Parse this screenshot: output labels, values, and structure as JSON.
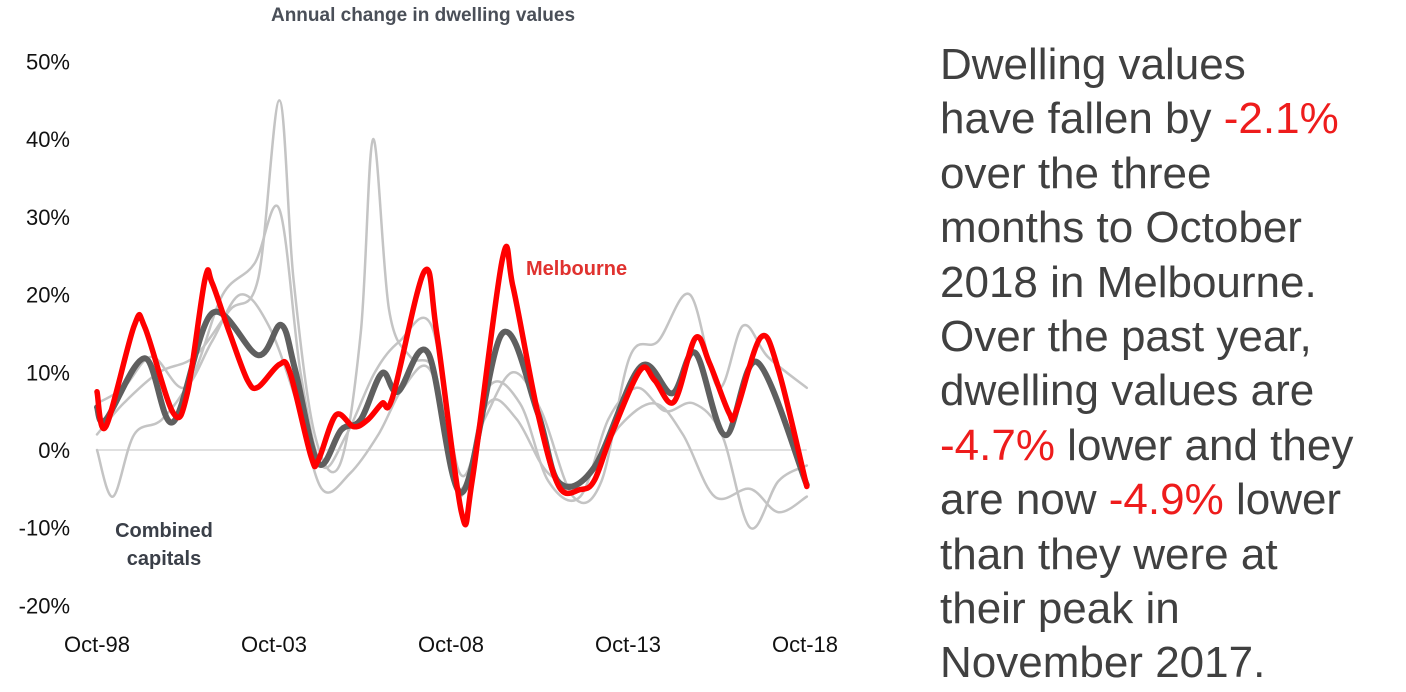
{
  "chart_data": {
    "type": "line",
    "title": "Annual change in dwelling values",
    "xlabel": "",
    "ylabel": "",
    "x_ticks": [
      "Oct-98",
      "Oct-03",
      "Oct-08",
      "Oct-13",
      "Oct-18"
    ],
    "x_tick_values": [
      1998.75,
      2003.75,
      2008.75,
      2013.75,
      2018.75
    ],
    "y_ticks": [
      "50%",
      "40%",
      "30%",
      "20%",
      "10%",
      "0%",
      "-10%",
      "-20%"
    ],
    "y_tick_values": [
      50,
      40,
      30,
      20,
      10,
      0,
      -10,
      -20
    ],
    "ylim": [
      -20,
      50
    ],
    "xlim": [
      1998.75,
      2018.8
    ],
    "grid": false,
    "zero_line": true,
    "colors": {
      "melbourne": "#ff0000",
      "combined": "#5f5f5f",
      "other": "#c4c4c4"
    },
    "series": [
      {
        "name": "Melbourne",
        "label_lines": [
          "Melbourne"
        ],
        "color": "#ff0000",
        "x": [
          1998.75,
          1999.0,
          1999.8,
          2000.1,
          2000.9,
          2001.3,
          2001.8,
          2002.0,
          2002.5,
          2003.0,
          2003.3,
          2003.9,
          2004.2,
          2004.8,
          2005.0,
          2005.5,
          2006.0,
          2006.4,
          2006.8,
          2007.1,
          2008.0,
          2008.35,
          2009.05,
          2009.35,
          2010.2,
          2010.5,
          2011.2,
          2011.8,
          2012.4,
          2012.8,
          2013.3,
          2014.1,
          2014.5,
          2015.05,
          2015.65,
          2016.05,
          2016.6,
          2016.8,
          2017.5,
          2018.0,
          2018.8
        ],
        "y": [
          7.5,
          3.0,
          16.0,
          15.8,
          4.8,
          7.3,
          22.0,
          21.5,
          15.0,
          9.0,
          8.1,
          11.0,
          10.0,
          -0.9,
          -1.3,
          4.5,
          3.0,
          3.9,
          6.0,
          6.8,
          23.0,
          15.0,
          -8.1,
          -3.9,
          24.5,
          21.0,
          4.8,
          -4.7,
          -5.1,
          -3.9,
          2.2,
          10.3,
          9.0,
          6.2,
          14.4,
          11.2,
          4.8,
          4.9,
          14.5,
          10.3,
          -4.7
        ]
      },
      {
        "name": "Combined capitals",
        "label_lines": [
          "Combined",
          "capitals"
        ],
        "color": "#5f5f5f",
        "x": [
          1998.75,
          1999.0,
          2000.1,
          2000.9,
          2002.0,
          2003.3,
          2003.95,
          2004.35,
          2005.0,
          2005.65,
          2006.2,
          2006.8,
          2007.25,
          2008.1,
          2009.05,
          2010.2,
          2011.2,
          2011.8,
          2012.8,
          2014.1,
          2015.0,
          2015.65,
          2016.5,
          2017.4,
          2018.8
        ],
        "y": [
          5.5,
          3.9,
          11.8,
          3.6,
          17.6,
          12.2,
          16.1,
          10.3,
          -1.7,
          2.6,
          3.9,
          9.9,
          7.5,
          12.5,
          -5.5,
          15.0,
          4.8,
          -4.2,
          -2.2,
          10.7,
          7.3,
          12.5,
          1.9,
          11.3,
          -4.5
        ]
      },
      {
        "color": "#c4c4c4",
        "x": [
          1998.75,
          1999.5,
          2000.5,
          2001.5,
          2002.5,
          2003.3,
          2003.9,
          2004.3,
          2004.9,
          2005.6,
          2006.2,
          2006.55,
          2007.0,
          2007.6,
          2008.3,
          2009.0,
          2009.8,
          2010.6,
          2011.5,
          2012.5,
          2013.5,
          2014.5,
          2015.3,
          2016.2,
          2017.2,
          2018.0,
          2018.8
        ],
        "y": [
          2,
          6,
          10,
          12,
          18,
          22,
          45,
          22,
          2,
          -2,
          15,
          40,
          18,
          12,
          10,
          -5,
          6,
          4,
          -3,
          -4,
          3,
          6,
          2,
          -6,
          -5,
          -8,
          -6
        ]
      },
      {
        "color": "#c4c4c4",
        "x": [
          1998.75,
          1999.2,
          1999.8,
          2000.6,
          2001.5,
          2002.3,
          2003.2,
          2003.9,
          2004.5,
          2005.1,
          2005.8,
          2006.6,
          2007.3,
          2008.2,
          2009.0,
          2009.7,
          2010.5,
          2011.3,
          2012.2,
          2013.0,
          2013.8,
          2014.6,
          2015.5,
          2016.3,
          2017.0,
          2017.7,
          2018.8
        ],
        "y": [
          0,
          -6,
          2,
          4,
          10,
          20,
          24,
          31,
          10,
          -2,
          2,
          10,
          14,
          16,
          -3,
          4,
          10,
          5,
          -6,
          -4,
          12,
          14,
          20,
          8,
          16,
          12,
          8
        ]
      },
      {
        "color": "#c4c4c4",
        "x": [
          1998.75,
          1999.5,
          2000.3,
          2001.2,
          2002.0,
          2002.8,
          2003.6,
          2004.4,
          2005.1,
          2005.9,
          2006.7,
          2007.4,
          2008.2,
          2009.0,
          2009.8,
          2010.7,
          2011.5,
          2012.4,
          2013.2,
          2014.0,
          2014.8,
          2015.6,
          2016.4,
          2017.2,
          2018.0,
          2018.8
        ],
        "y": [
          6,
          8,
          12,
          8,
          14,
          20,
          16,
          6,
          -5,
          -3,
          2,
          8,
          10,
          -6,
          8,
          6,
          -4,
          -6,
          4,
          8,
          5,
          6,
          2,
          -10,
          -4,
          -2
        ]
      }
    ]
  },
  "commentary": {
    "lines": [
      [
        {
          "text": "Dwelling values",
          "highlight": false
        }
      ],
      [
        {
          "text": "have fallen by ",
          "highlight": false
        },
        {
          "text": "-2.1%",
          "highlight": true
        }
      ],
      [
        {
          "text": "over the three",
          "highlight": false
        }
      ],
      [
        {
          "text": "months to October",
          "highlight": false
        }
      ],
      [
        {
          "text": "2018 in Melbourne.",
          "highlight": false
        }
      ],
      [
        {
          "text": "Over the past year,",
          "highlight": false
        }
      ],
      [
        {
          "text": "dwelling values are",
          "highlight": false
        }
      ],
      [
        {
          "text": "-4.7%",
          "highlight": true
        },
        {
          "text": " lower and they",
          "highlight": false
        }
      ],
      [
        {
          "text": "are now ",
          "highlight": false
        },
        {
          "text": "-4.9%",
          "highlight": true
        },
        {
          "text": " lower",
          "highlight": false
        }
      ],
      [
        {
          "text": "than they were at",
          "highlight": false
        }
      ],
      [
        {
          "text": "their peak in",
          "highlight": false
        }
      ],
      [
        {
          "text": "November 2017.",
          "highlight": false
        }
      ]
    ],
    "highlight_color": "#ee1c1c",
    "text_color": "#404040"
  }
}
